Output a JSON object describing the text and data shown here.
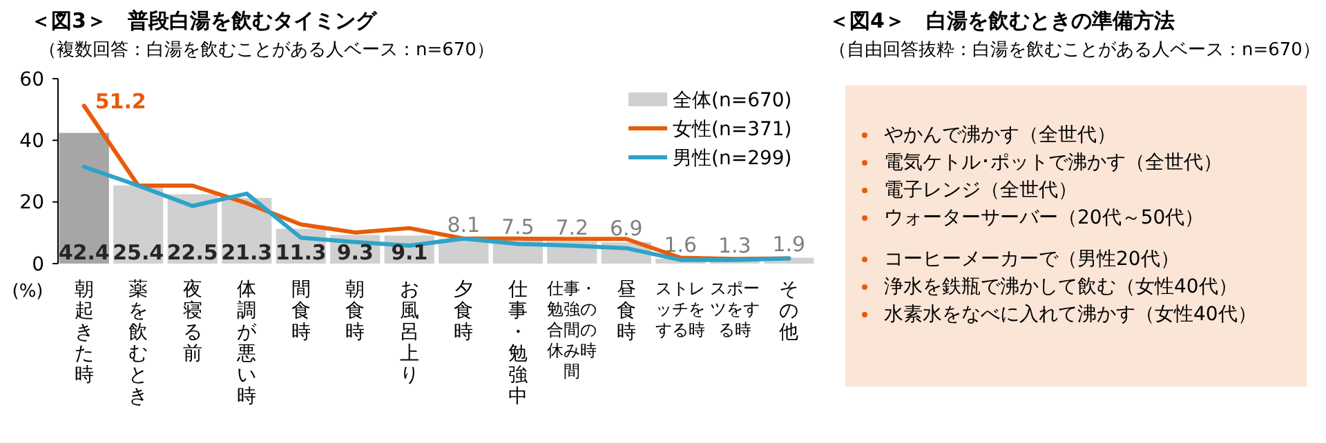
{
  "chart_data": [
    {
      "type": "bar",
      "title": "＜図3＞　普段白湯を飲むタイミング",
      "subtitle": "（複数回答：白湯を飲むことがある人ベース：n=670）",
      "ylabel": "(%)",
      "categories": [
        "朝起きた時",
        "薬を飲むとき",
        "夜寝る前",
        "体調が悪い時",
        "間食時",
        "朝食時",
        "お風呂上り",
        "夕食時",
        "仕事・勉強中",
        "仕事・勉強の合間の休み時間",
        "昼食時",
        "ストレッチをする時",
        "スポーツをする時",
        "その他"
      ],
      "ylim": [
        0,
        60
      ],
      "yticks": [
        0,
        20,
        40,
        60
      ],
      "grid": false,
      "legend": "top right",
      "series": [
        {
          "name": "全体(n=670)",
          "type": "bar",
          "color": "#d0d0d0",
          "colors": [
            "#a6a6a6",
            "#d0d0d0",
            "#d0d0d0",
            "#d0d0d0",
            "#d0d0d0",
            "#d0d0d0",
            "#d0d0d0",
            "#d0d0d0",
            "#d0d0d0",
            "#d0d0d0",
            "#d0d0d0",
            "#d0d0d0",
            "#d0d0d0",
            "#d0d0d0"
          ],
          "values": [
            42.4,
            25.4,
            22.5,
            21.3,
            11.3,
            9.3,
            9.1,
            8.1,
            7.5,
            7.2,
            6.9,
            1.6,
            1.3,
            1.9
          ],
          "value_labels": [
            "42.4",
            "25.4",
            "22.5",
            "21.3",
            "11.3",
            "9.3",
            "9.1",
            "8.1",
            "7.5",
            "7.2",
            "6.9",
            "1.6",
            "1.3",
            "1.9"
          ]
        },
        {
          "name": "女性(n=371)",
          "type": "line",
          "color": "#e85b0c",
          "values": [
            51.2,
            25.3,
            25.3,
            19.6,
            12.7,
            10.1,
            11.5,
            8.1,
            8.1,
            8,
            8,
            1.9,
            1.5,
            1.7
          ],
          "value_labels": [
            "51.2",
            null,
            null,
            null,
            null,
            null,
            null,
            null,
            null,
            null,
            null,
            null,
            null,
            null
          ]
        },
        {
          "name": "男性(n=299)",
          "type": "line",
          "color": "#2ea3c8",
          "values": [
            31.4,
            25.3,
            18.7,
            22.7,
            8.4,
            7,
            5.8,
            8.1,
            6.4,
            5.8,
            5,
            1.2,
            1.2,
            1.7
          ]
        }
      ]
    },
    {
      "type": "other",
      "title": "＜図4＞　白湯を飲むときの準備方法",
      "subtitle": "（自由回答抜粋：白湯を飲むことがある人ベース：n=670）",
      "annotations": [
        "やかんで沸かす（全世代）",
        "電気ケトル･ポットで沸かす（全世代）",
        "電子レンジ（全世代）",
        "ウォーターサーバー（20代～50代）",
        "コーヒーメーカーで（男性20代）",
        "浄水を鉄瓶で沸かして飲む（女性40代）",
        "水素水をなべに入れて沸かす（女性40代）"
      ]
    }
  ]
}
